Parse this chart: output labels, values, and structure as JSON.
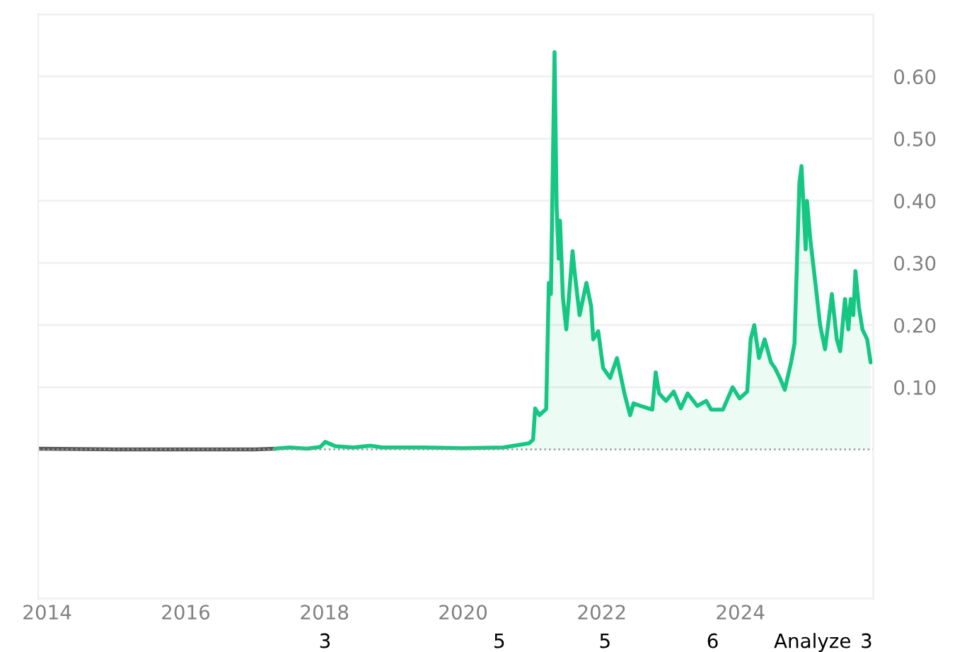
{
  "chart_data": {
    "type": "line",
    "xlim": [
      "2013-11-15",
      "2025-12-01"
    ],
    "xticks": [
      {
        "value": "2014-01-01",
        "label": "2014"
      },
      {
        "value": "2016-01-01",
        "label": "2016"
      },
      {
        "value": "2018-01-01",
        "label": "2018"
      },
      {
        "value": "2020-01-01",
        "label": "2020"
      },
      {
        "value": "2022-01-01",
        "label": "2022"
      },
      {
        "value": "2024-01-01",
        "label": "2024"
      }
    ],
    "ylim": [
      -0.24,
      0.7
    ],
    "yticks": [
      {
        "value": 0.1,
        "label": "0.10"
      },
      {
        "value": 0.2,
        "label": "0.20"
      },
      {
        "value": 0.3,
        "label": "0.30"
      },
      {
        "value": 0.4,
        "label": "0.40"
      },
      {
        "value": 0.5,
        "label": "0.50"
      },
      {
        "value": 0.6,
        "label": "0.60"
      }
    ],
    "grid": "y",
    "legend": false,
    "ref_lines": [
      {
        "axis": "y",
        "value": 0,
        "label": null,
        "color": "#999999",
        "line_style": "dotted"
      }
    ],
    "annotations": [
      "3",
      "5",
      "5",
      "6",
      "Analyze",
      "3"
    ],
    "series": [
      {
        "color": "#58595b",
        "x": [
          "2013-11-15",
          "2015-01-01",
          "2016-01-01",
          "2017-01-01",
          "2017-04-15"
        ],
        "values": [
          0.001,
          0.0,
          0.0,
          0.0,
          0.001
        ]
      },
      {
        "type": "area",
        "color": "#16c784",
        "x": [
          "2017-04-15",
          "2017-07-01",
          "2017-10-01",
          "2017-12-10",
          "2018-01-05",
          "2018-03-01",
          "2018-06-01",
          "2018-09-01",
          "2018-11-01",
          "2019-06-01",
          "2020-01-01",
          "2020-08-01",
          "2020-12-15",
          "2021-01-04",
          "2021-01-15",
          "2021-02-06",
          "2021-03-14",
          "2021-03-28",
          "2021-04-08",
          "2021-04-27",
          "2021-05-08",
          "2021-05-19",
          "2021-05-26",
          "2021-06-10",
          "2021-06-28",
          "2021-07-31",
          "2021-08-11",
          "2021-09-06",
          "2021-10-12",
          "2021-11-06",
          "2021-11-17",
          "2021-12-13",
          "2022-01-08",
          "2022-02-14",
          "2022-03-22",
          "2022-05-01",
          "2022-05-30",
          "2022-06-17",
          "2022-07-23",
          "2022-09-24",
          "2022-10-12",
          "2022-10-30",
          "2022-12-05",
          "2023-01-15",
          "2023-02-21",
          "2023-03-29",
          "2023-05-19",
          "2023-07-05",
          "2023-07-31",
          "2023-10-01",
          "2023-11-21",
          "2023-12-28",
          "2024-02-06",
          "2024-02-24",
          "2024-03-14",
          "2024-04-08",
          "2024-05-08",
          "2024-06-10",
          "2024-07-01",
          "2024-07-27",
          "2024-08-22",
          "2024-09-24",
          "2024-10-12",
          "2024-11-07",
          "2024-11-18",
          "2024-12-10",
          "2024-12-17",
          "2025-01-04",
          "2025-01-30",
          "2025-02-24",
          "2025-03-22",
          "2025-04-27",
          "2025-05-23",
          "2025-06-10",
          "2025-07-05",
          "2025-07-23",
          "2025-08-04",
          "2025-08-18",
          "2025-08-29",
          "2025-09-16",
          "2025-10-05",
          "2025-10-30",
          "2025-11-17"
        ],
        "values": [
          0.001,
          0.003,
          0.001,
          0.004,
          0.012,
          0.005,
          0.003,
          0.006,
          0.003,
          0.003,
          0.002,
          0.003,
          0.01,
          0.016,
          0.066,
          0.055,
          0.065,
          0.268,
          0.25,
          0.639,
          0.39,
          0.307,
          0.368,
          0.245,
          0.193,
          0.319,
          0.285,
          0.216,
          0.268,
          0.23,
          0.177,
          0.19,
          0.131,
          0.115,
          0.147,
          0.089,
          0.055,
          0.074,
          0.07,
          0.064,
          0.124,
          0.09,
          0.078,
          0.093,
          0.066,
          0.09,
          0.07,
          0.078,
          0.064,
          0.064,
          0.1,
          0.082,
          0.093,
          0.177,
          0.2,
          0.147,
          0.177,
          0.14,
          0.131,
          0.115,
          0.096,
          0.14,
          0.17,
          0.429,
          0.456,
          0.322,
          0.4,
          0.336,
          0.268,
          0.2,
          0.161,
          0.25,
          0.177,
          0.158,
          0.242,
          0.193,
          0.242,
          0.216,
          0.287,
          0.23,
          0.193,
          0.177,
          0.14
        ]
      }
    ]
  }
}
